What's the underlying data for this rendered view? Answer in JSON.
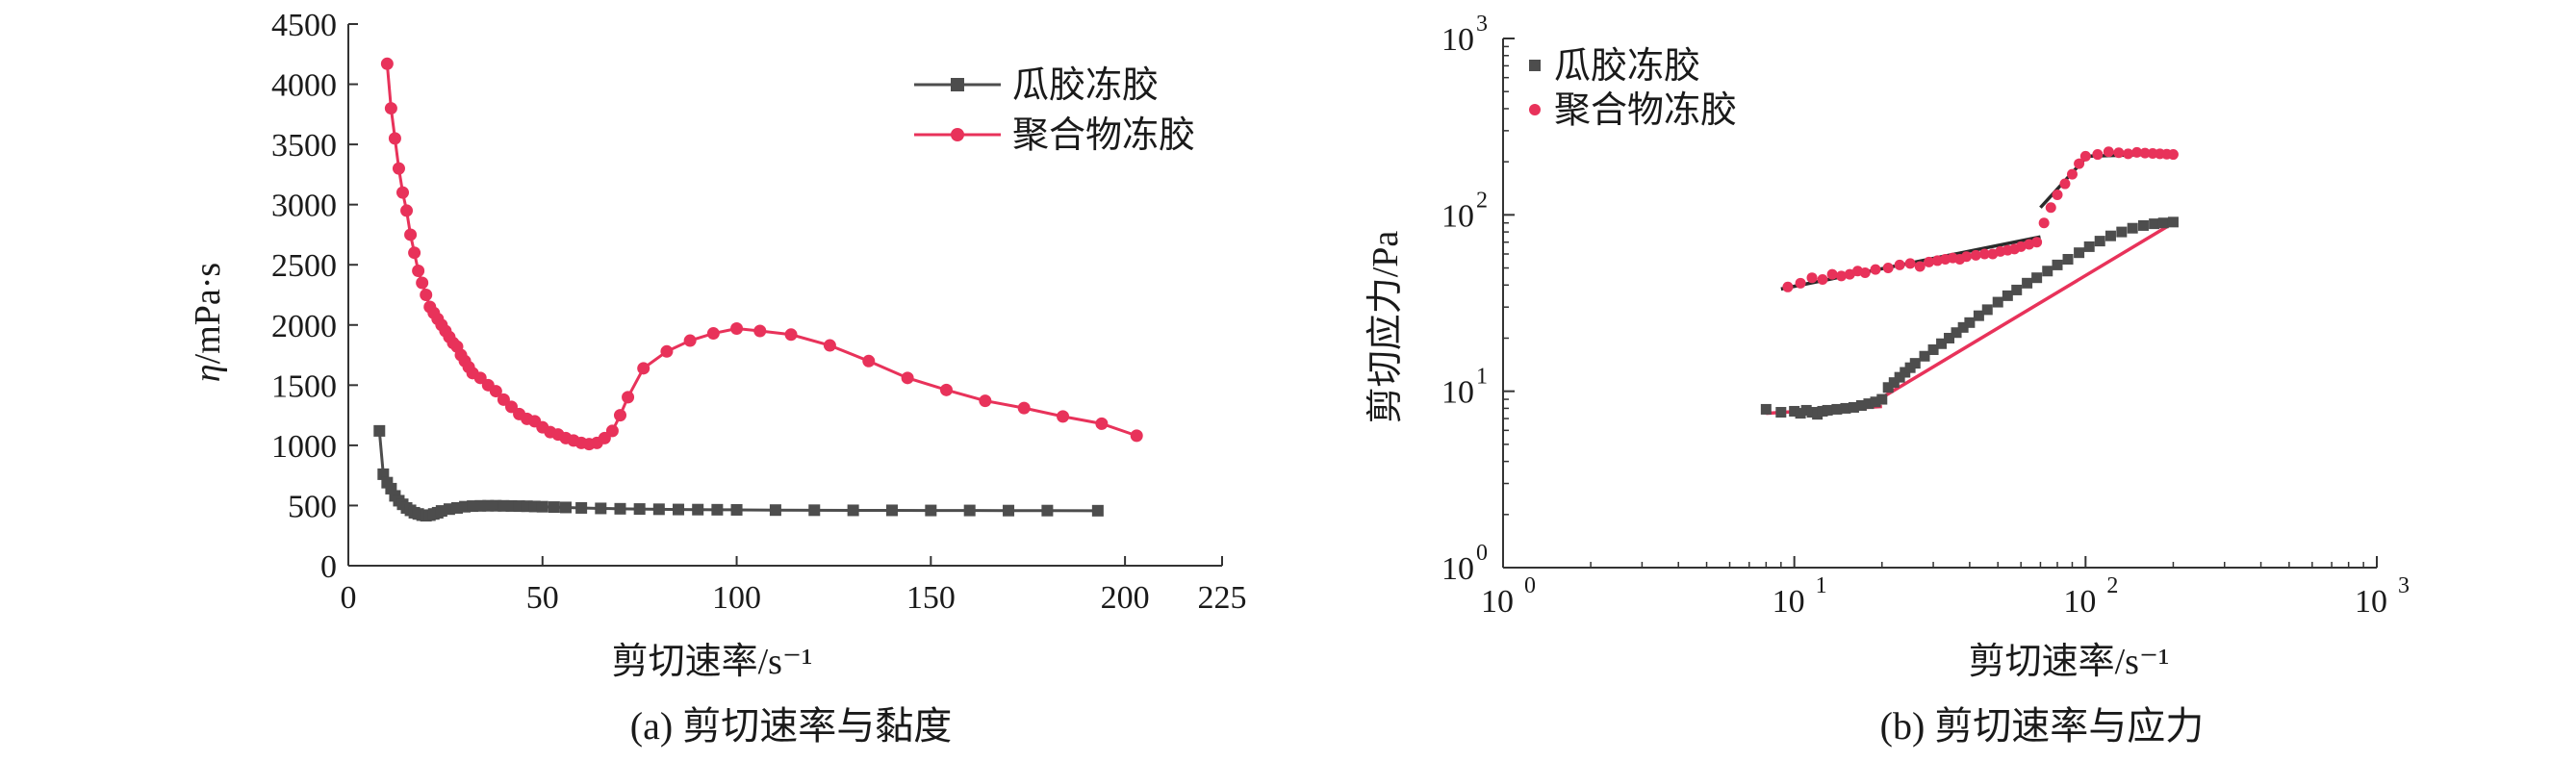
{
  "figure": {
    "captions": [
      "(a) 剪切速率与黏度",
      "(b) 剪切速率与应力"
    ]
  },
  "chart_data": [
    {
      "type": "line",
      "xlabel": "剪切速率/s⁻¹",
      "ylabel_italic": "η",
      "ylabel_rest": "/mPa·s",
      "xlim": [
        0,
        225
      ],
      "ylim": [
        0,
        4500
      ],
      "xticks": [
        "0",
        "50",
        "100",
        "150",
        "200",
        "225"
      ],
      "yticks": [
        "0",
        "500",
        "1000",
        "1500",
        "2000",
        "2500",
        "3000",
        "3500",
        "4000",
        "4500"
      ],
      "legend_position": "top-right",
      "series": [
        {
          "name": "瓜胶冻胶",
          "color": "#4d4d4d",
          "marker": "square",
          "x": [
            8,
            9,
            10,
            11,
            12,
            13,
            14,
            15,
            16,
            17,
            18,
            19,
            20,
            21,
            22,
            23,
            24,
            26,
            28,
            30,
            32,
            34,
            36,
            38,
            40,
            42,
            44,
            46,
            48,
            50,
            53,
            56,
            60,
            65,
            70,
            75,
            80,
            85,
            90,
            95,
            100,
            110,
            120,
            130,
            140,
            150,
            160,
            170,
            180,
            193
          ],
          "y": [
            1120,
            760,
            690,
            640,
            580,
            540,
            510,
            480,
            460,
            440,
            430,
            420,
            415,
            420,
            430,
            440,
            455,
            470,
            480,
            490,
            495,
            497,
            498,
            498,
            497,
            496,
            495,
            494,
            492,
            490,
            487,
            484,
            480,
            476,
            473,
            471,
            469,
            467,
            466,
            465,
            464,
            462,
            461,
            460,
            460,
            459,
            459,
            458,
            458,
            457
          ]
        },
        {
          "name": "聚合物冻胶",
          "color": "#e8325a",
          "marker": "circle",
          "x": [
            10,
            11,
            12,
            13,
            14,
            15,
            16,
            17,
            18,
            19,
            20,
            21,
            22,
            23,
            24,
            25,
            26,
            27,
            28,
            29,
            30,
            31,
            32,
            34,
            36,
            38,
            40,
            42,
            44,
            46,
            48,
            50,
            52,
            54,
            56,
            58,
            60,
            62,
            64,
            66,
            68,
            70,
            72,
            76,
            82,
            88,
            94,
            100,
            106,
            114,
            124,
            134,
            144,
            154,
            164,
            174,
            184,
            194,
            203
          ],
          "y": [
            4170,
            3800,
            3550,
            3300,
            3100,
            2950,
            2750,
            2600,
            2450,
            2350,
            2250,
            2150,
            2100,
            2050,
            2000,
            1950,
            1900,
            1850,
            1820,
            1750,
            1700,
            1650,
            1600,
            1560,
            1500,
            1450,
            1380,
            1320,
            1260,
            1220,
            1200,
            1150,
            1110,
            1090,
            1060,
            1040,
            1020,
            1010,
            1020,
            1060,
            1120,
            1250,
            1400,
            1640,
            1780,
            1870,
            1930,
            1970,
            1950,
            1920,
            1830,
            1700,
            1560,
            1460,
            1370,
            1310,
            1240,
            1180,
            1080
          ]
        }
      ]
    },
    {
      "type": "scatter",
      "xlabel": "剪切速率/s⁻¹",
      "ylabel": "剪切应力/Pa",
      "xscale": "log",
      "yscale": "log",
      "xlim": [
        1,
        1000
      ],
      "ylim": [
        1,
        1000
      ],
      "xticks": [
        {
          "base": "10",
          "exp": "0"
        },
        {
          "base": "10",
          "exp": "1"
        },
        {
          "base": "10",
          "exp": "2"
        },
        {
          "base": "10",
          "exp": "3"
        }
      ],
      "yticks": [
        {
          "base": "10",
          "exp": "0"
        },
        {
          "base": "10",
          "exp": "1"
        },
        {
          "base": "10",
          "exp": "2"
        },
        {
          "base": "10",
          "exp": "3"
        }
      ],
      "legend_position": "top-left",
      "series": [
        {
          "name": "瓜胶冻胶",
          "color": "#4d4d4d",
          "marker": "square",
          "x": [
            8,
            9,
            10,
            10.5,
            11,
            11.5,
            12,
            12.5,
            13,
            14,
            15,
            16,
            17,
            18,
            19,
            20,
            21,
            22,
            23,
            24,
            25,
            26,
            28,
            30,
            32,
            34,
            36,
            38,
            40,
            43,
            46,
            50,
            54,
            58,
            63,
            68,
            74,
            80,
            87,
            95,
            103,
            112,
            122,
            133,
            145,
            158,
            172,
            185,
            200
          ],
          "y": [
            7.9,
            7.6,
            7.7,
            7.5,
            7.8,
            7.6,
            7.4,
            7.7,
            7.8,
            7.9,
            8.0,
            8.1,
            8.3,
            8.5,
            8.7,
            9.0,
            10.5,
            11.2,
            12.0,
            12.8,
            13.6,
            14.4,
            15.8,
            17.2,
            18.6,
            20.0,
            21.5,
            23.0,
            24.5,
            26.8,
            29.0,
            32.0,
            34.8,
            37.5,
            41.0,
            44.0,
            48.0,
            52.0,
            56.0,
            61.0,
            66.0,
            71.0,
            76.0,
            80.0,
            84.0,
            87.0,
            89.0,
            90.0,
            91.0
          ]
        },
        {
          "name": "聚合物冻胶",
          "color": "#e8325a",
          "marker": "circle",
          "x": [
            9.5,
            10.5,
            11.5,
            12.5,
            13.5,
            14.5,
            15.5,
            16.5,
            17.5,
            19,
            21,
            23,
            25,
            27,
            29,
            31,
            33,
            35,
            37,
            39,
            42,
            45,
            48,
            51,
            54,
            57,
            60,
            64,
            68,
            72,
            76,
            80,
            85,
            90,
            95,
            100,
            110,
            120,
            130,
            140,
            150,
            160,
            170,
            180,
            190,
            200
          ],
          "y": [
            39,
            41,
            44,
            43,
            46,
            45,
            46,
            48,
            47,
            49,
            50,
            52,
            53,
            51,
            54,
            55,
            56,
            57,
            56,
            58,
            59,
            60,
            60,
            62,
            63,
            64,
            66,
            68,
            70,
            90,
            110,
            130,
            150,
            170,
            195,
            215,
            220,
            228,
            225,
            222,
            226,
            224,
            223,
            222,
            221,
            220
          ]
        }
      ],
      "fit_lines": [
        {
          "color": "#2a2a2a",
          "x": [
            9,
            70
          ],
          "y": [
            38,
            75
          ]
        },
        {
          "color": "#2a2a2a",
          "x": [
            70,
            100
          ],
          "y": [
            110,
            210
          ]
        },
        {
          "color": "#2a2a2a",
          "x": [
            100,
            205
          ],
          "y": [
            215,
            222
          ]
        },
        {
          "color": "#e8325a",
          "x": [
            8,
            20
          ],
          "y": [
            7.5,
            8.2
          ]
        },
        {
          "color": "#e8325a",
          "x": [
            20,
            200
          ],
          "y": [
            9.2,
            90
          ]
        }
      ]
    }
  ]
}
